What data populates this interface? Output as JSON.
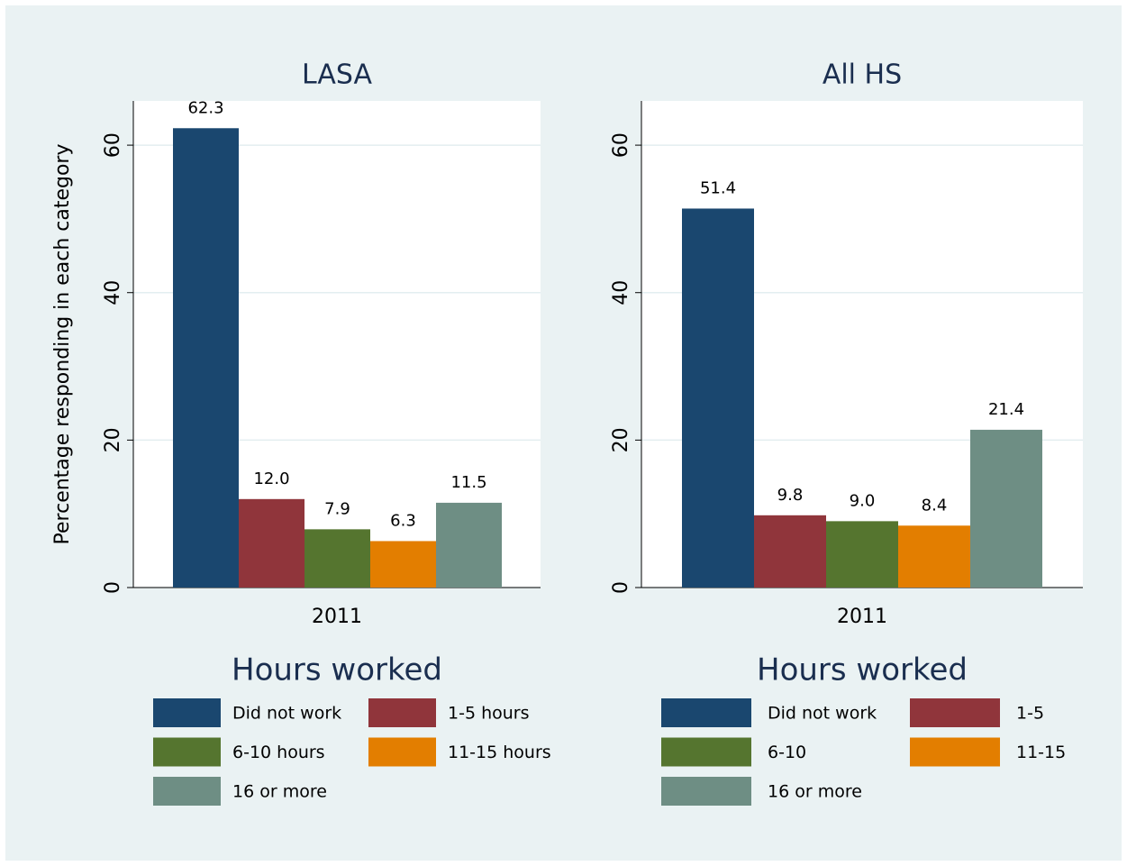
{
  "chart_data": [
    {
      "type": "bar",
      "title": "LASA",
      "y_label": "Percentage responding in each category",
      "categories": [
        "2011"
      ],
      "ylim": [
        0,
        66
      ],
      "yticks": [
        0,
        20,
        40,
        60
      ],
      "grid": true,
      "legend_title": "Hours worked",
      "series": [
        {
          "name": "Did not work",
          "color": "#1a476f",
          "values": [
            62.3
          ],
          "value_labels": [
            "62.3"
          ]
        },
        {
          "name": "1-5 hours",
          "color": "#90353b",
          "values": [
            12.0
          ],
          "value_labels": [
            "12.0"
          ]
        },
        {
          "name": "6-10 hours",
          "color": "#55752f",
          "values": [
            7.9
          ],
          "value_labels": [
            "7.9"
          ]
        },
        {
          "name": "11-15 hours",
          "color": "#e37e00",
          "values": [
            6.3
          ],
          "value_labels": [
            "6.3"
          ]
        },
        {
          "name": "16 or more",
          "color": "#6e8e84",
          "values": [
            11.5
          ],
          "value_labels": [
            "11.5"
          ]
        }
      ]
    },
    {
      "type": "bar",
      "title": "All HS",
      "categories": [
        "2011"
      ],
      "ylim": [
        0,
        66
      ],
      "yticks": [
        0,
        20,
        40,
        60
      ],
      "grid": true,
      "legend_title": "Hours worked",
      "series": [
        {
          "name": "Did not work",
          "color": "#1a476f",
          "values": [
            51.4
          ],
          "value_labels": [
            "51.4"
          ]
        },
        {
          "name": "1-5",
          "color": "#90353b",
          "values": [
            9.8
          ],
          "value_labels": [
            "9.8"
          ]
        },
        {
          "name": "6-10",
          "color": "#55752f",
          "values": [
            9.0
          ],
          "value_labels": [
            "9.0"
          ]
        },
        {
          "name": "11-15",
          "color": "#e37e00",
          "values": [
            8.4
          ],
          "value_labels": [
            "8.4"
          ]
        },
        {
          "name": "16 or more",
          "color": "#6e8e84",
          "values": [
            21.4
          ],
          "value_labels": [
            "21.4"
          ]
        }
      ]
    }
  ]
}
